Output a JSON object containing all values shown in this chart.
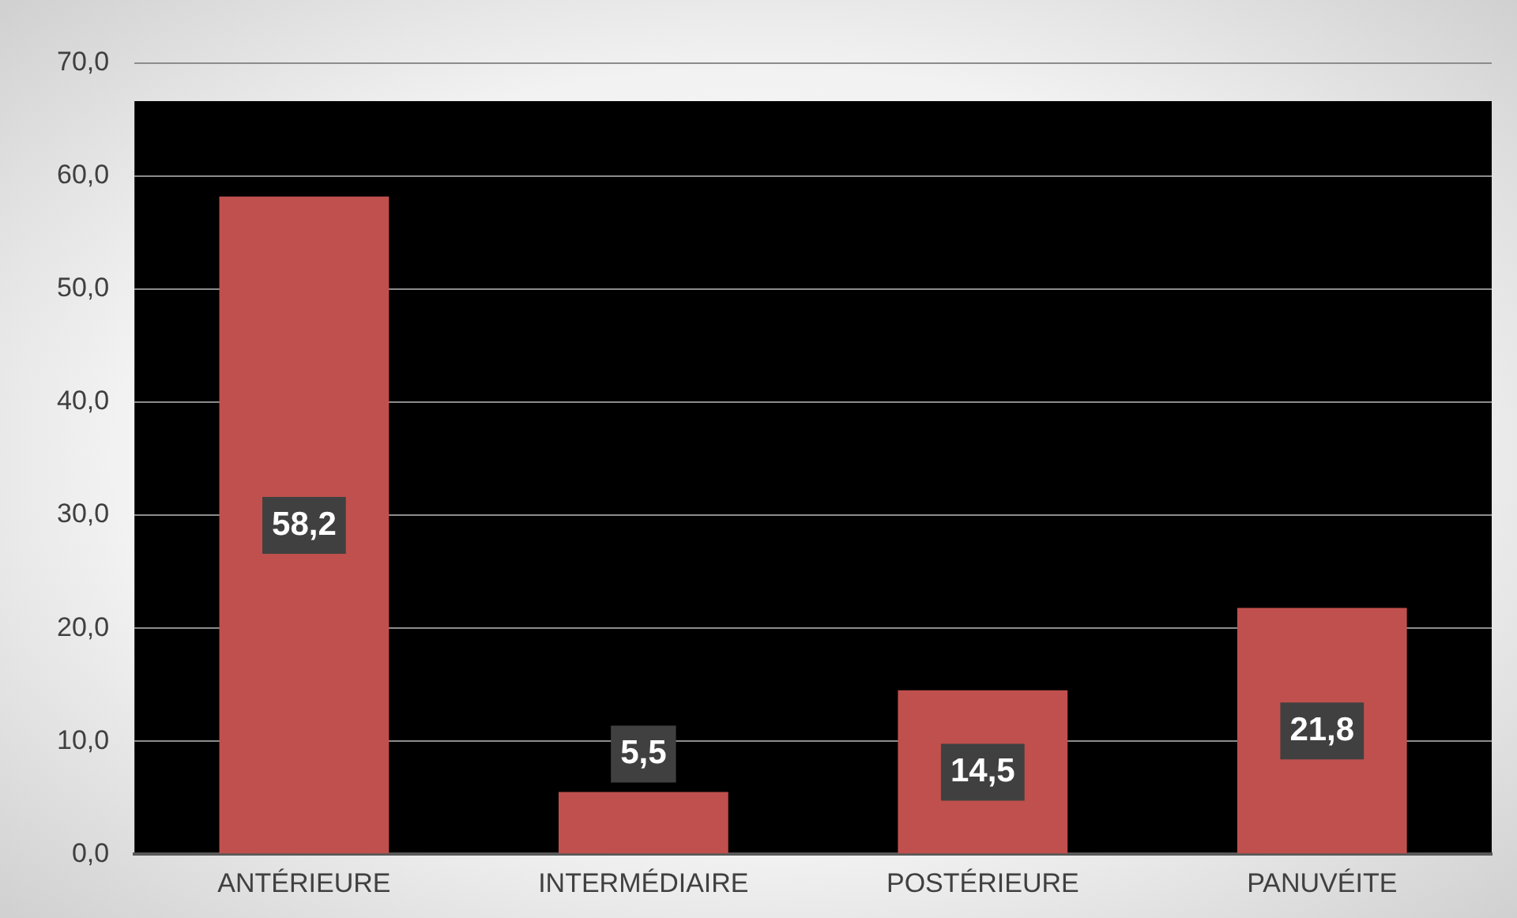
{
  "chart_data": {
    "type": "bar",
    "categories": [
      "ANTÉRIEURE",
      "INTERMÉDIAIRE",
      "POSTÉRIEURE",
      "PANUVÉITE"
    ],
    "values": [
      58.2,
      5.5,
      14.5,
      21.8
    ],
    "color": "#c0504d",
    "ylim": [
      0,
      70
    ],
    "yticks": [
      {
        "value": 0,
        "label": "0,0"
      },
      {
        "value": 10,
        "label": "10,0"
      },
      {
        "value": 20,
        "label": "20,0"
      },
      {
        "value": 30,
        "label": "30,0"
      },
      {
        "value": 40,
        "label": "40,0"
      },
      {
        "value": 50,
        "label": "50,0"
      },
      {
        "value": 60,
        "label": "60,0"
      },
      {
        "value": 70,
        "label": "70,0"
      }
    ],
    "grid": "y",
    "data_labels": true,
    "value_labels": [
      "58,2",
      "5,5",
      "14,5",
      "21,8"
    ]
  }
}
